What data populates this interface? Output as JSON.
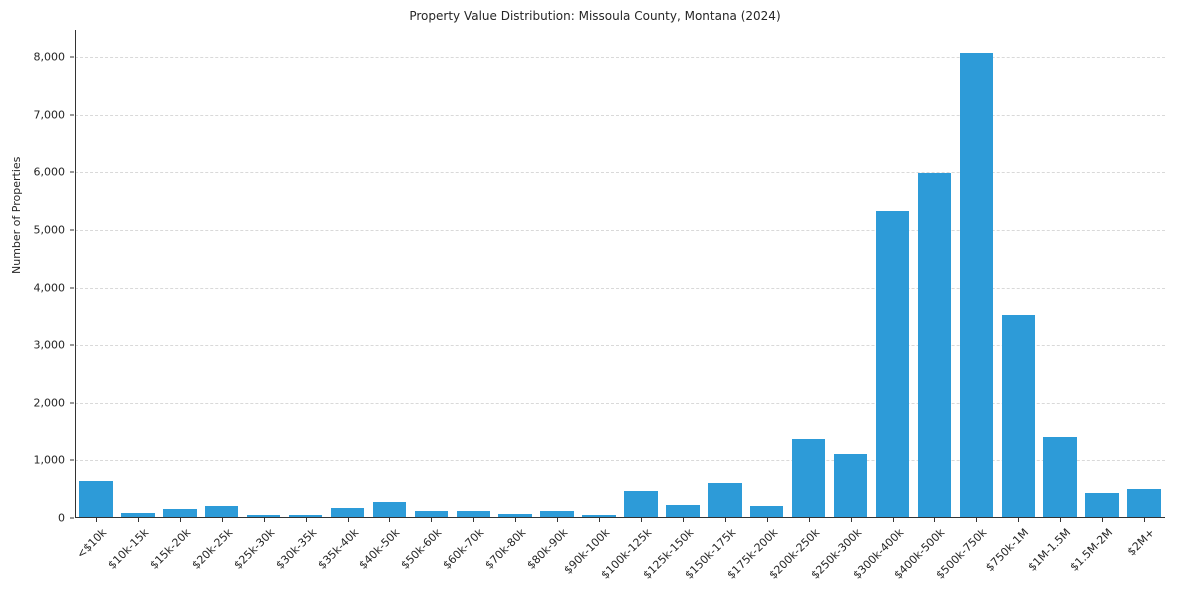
{
  "chart_data": {
    "type": "bar",
    "title": "Property Value Distribution: Missoula County, Montana (2024)",
    "xlabel": "",
    "ylabel": "Number of Properties",
    "ylim": [
      0,
      8470
    ],
    "grid": "horizontal-dashed",
    "legend": "none",
    "bar_color": "#2d9bd8",
    "y_ticks": [
      0,
      1000,
      2000,
      3000,
      4000,
      5000,
      6000,
      7000,
      8000
    ],
    "y_tick_labels": [
      "0",
      "1,000",
      "2,000",
      "3,000",
      "4,000",
      "5,000",
      "6,000",
      "7,000",
      "8,000"
    ],
    "categories": [
      "<$10k",
      "$10k-15k",
      "$15k-20k",
      "$20k-25k",
      "$25k-30k",
      "$30k-35k",
      "$35k-40k",
      "$40k-50k",
      "$50k-60k",
      "$60k-70k",
      "$70k-80k",
      "$80k-90k",
      "$90k-100k",
      "$100k-125k",
      "$125k-150k",
      "$150k-175k",
      "$175k-200k",
      "$200k-250k",
      "$250k-300k",
      "$300k-400k",
      "$400k-500k",
      "$500k-750k",
      "$750k-1M",
      "$1M-1.5M",
      "$1.5M-2M",
      "$2M+"
    ],
    "values": [
      620,
      70,
      140,
      190,
      35,
      35,
      155,
      260,
      105,
      105,
      50,
      105,
      35,
      450,
      210,
      590,
      190,
      1350,
      1100,
      5310,
      5970,
      8060,
      3500,
      1390,
      410,
      480
    ]
  }
}
